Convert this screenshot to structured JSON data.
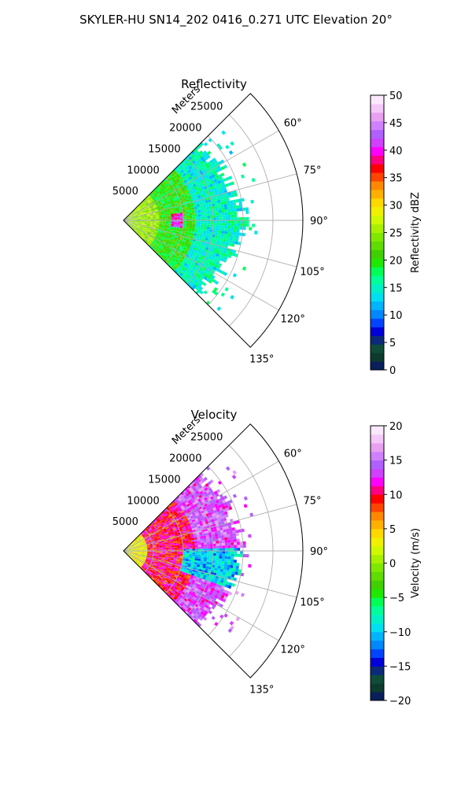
{
  "figure": {
    "title": "SKYLER-HU  SN14_202  0416_0.271 UTC Elevation 20°"
  },
  "chart_data": [
    {
      "type": "heatmap",
      "projection": "polar-sector",
      "title": "Reflectivity",
      "radial_label": "Meters",
      "radial_ticks": [
        5000,
        10000,
        15000,
        20000,
        25000
      ],
      "radial_tick_labels": [
        "5000",
        "10000",
        "15000",
        "20000",
        "25000"
      ],
      "r_range": [
        0,
        30000
      ],
      "azimuth_range_deg": [
        45,
        135
      ],
      "azimuth_ticks": [
        60,
        75,
        90,
        105,
        120,
        135
      ],
      "azimuth_tick_labels": [
        "60°",
        "75°",
        "90°",
        "105°",
        "120°",
        "135°"
      ],
      "grid": true,
      "colorbar": {
        "label": "Reflectivity dBZ",
        "range": [
          0,
          50
        ],
        "ticks": [
          0,
          5,
          10,
          15,
          20,
          25,
          30,
          35,
          40,
          45,
          50
        ],
        "tick_labels": [
          "0",
          "5",
          "10",
          "15",
          "20",
          "25",
          "30",
          "35",
          "40",
          "45",
          "50"
        ],
        "colors": [
          "#0a1f5c",
          "#0d3b2e",
          "#0f4d3a",
          "#0a2a7a",
          "#0000d8",
          "#0044ff",
          "#0088ff",
          "#00b4ff",
          "#00e0f0",
          "#00f0c8",
          "#00ff99",
          "#00ff55",
          "#20e800",
          "#40d000",
          "#60dc00",
          "#80e800",
          "#a8f000",
          "#d0f800",
          "#f0f000",
          "#ffd800",
          "#ffb000",
          "#ff8800",
          "#ff4400",
          "#ff0000",
          "#ff0080",
          "#ff00ff",
          "#d040ff",
          "#b060ff",
          "#d080ff",
          "#e8a0f0",
          "#f4c8f8",
          "#fbe8fc"
        ]
      },
      "field_summary": [
        {
          "range_m": [
            0,
            6000
          ],
          "value": 25
        },
        {
          "range_m": [
            6000,
            12000
          ],
          "value": 20
        },
        {
          "range_m": [
            12000,
            18000
          ],
          "value": 15
        },
        {
          "range_m": [
            8000,
            10000
          ],
          "azimuth_deg": [
            83,
            97
          ],
          "value": 40
        }
      ]
    },
    {
      "type": "heatmap",
      "projection": "polar-sector",
      "title": "Velocity",
      "radial_label": "Meters",
      "radial_ticks": [
        5000,
        10000,
        15000,
        20000,
        25000
      ],
      "radial_tick_labels": [
        "5000",
        "10000",
        "15000",
        "20000",
        "25000"
      ],
      "r_range": [
        0,
        30000
      ],
      "azimuth_range_deg": [
        45,
        135
      ],
      "azimuth_ticks": [
        60,
        75,
        90,
        105,
        120,
        135
      ],
      "azimuth_tick_labels": [
        "60°",
        "75°",
        "90°",
        "105°",
        "120°",
        "135°"
      ],
      "grid": true,
      "colorbar": {
        "label": "Velocity (m/s)",
        "range": [
          -20,
          20
        ],
        "ticks": [
          -20,
          -15,
          -10,
          -5,
          0,
          5,
          10,
          15,
          20
        ],
        "tick_labels": [
          "−20",
          "−15",
          "−10",
          "−5",
          "0",
          "5",
          "10",
          "15",
          "20"
        ],
        "colors": [
          "#0a1f5c",
          "#0d3b2e",
          "#0f4d3a",
          "#0a2a7a",
          "#0000d8",
          "#0044ff",
          "#0088ff",
          "#00b4ff",
          "#00e0f0",
          "#00f0c8",
          "#00ff99",
          "#00ff55",
          "#20e800",
          "#40d000",
          "#60dc00",
          "#80e800",
          "#a8f000",
          "#d0f800",
          "#f0f000",
          "#ffd800",
          "#ffb000",
          "#ff8800",
          "#ff4400",
          "#ff0000",
          "#ff0080",
          "#ff00ff",
          "#d040ff",
          "#b060ff",
          "#d080ff",
          "#e8a0f0",
          "#f4c8f8",
          "#fbe8fc"
        ]
      },
      "field_summary": [
        {
          "range_m": [
            0,
            4000
          ],
          "value": 3
        },
        {
          "range_m": [
            4000,
            12000
          ],
          "value": 10
        },
        {
          "range_m": [
            12000,
            20000
          ],
          "value": 14
        },
        {
          "range_m": [
            10000,
            20000
          ],
          "azimuth_deg": [
            88,
            110
          ],
          "value": -10
        }
      ]
    }
  ]
}
